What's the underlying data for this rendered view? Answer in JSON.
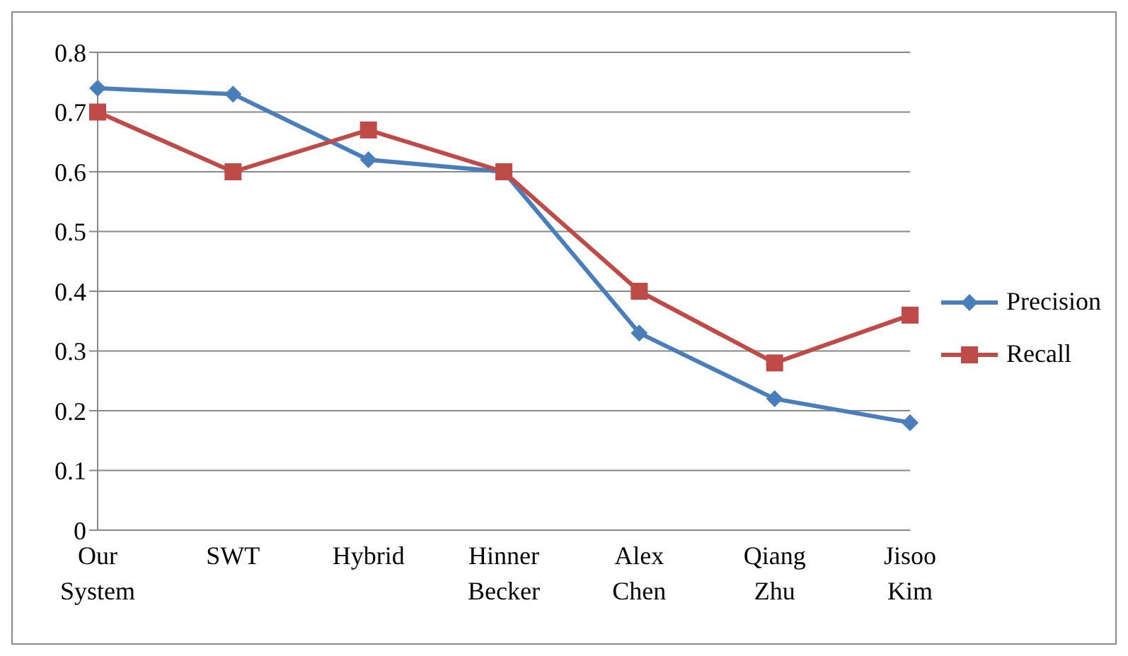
{
  "chart_data": {
    "type": "line",
    "categories": [
      "Our System",
      "SWT",
      "Hybrid",
      "Hinner Becker",
      "Alex Chen",
      "Qiang Zhu",
      "Jisoo Kim"
    ],
    "series": [
      {
        "name": "Precision",
        "color": "#4a7ebb",
        "marker": "diamond",
        "values": [
          0.74,
          0.73,
          0.62,
          0.6,
          0.33,
          0.22,
          0.18
        ]
      },
      {
        "name": "Recall",
        "color": "#be4b48",
        "marker": "square",
        "values": [
          0.7,
          0.6,
          0.67,
          0.6,
          0.4,
          0.28,
          0.36
        ]
      }
    ],
    "ylim": [
      0,
      0.8
    ],
    "yticks": [
      0,
      0.1,
      0.2,
      0.3,
      0.4,
      0.5,
      0.6,
      0.7,
      0.8
    ],
    "grid": "y",
    "legend": "right",
    "line_style": "solid"
  }
}
